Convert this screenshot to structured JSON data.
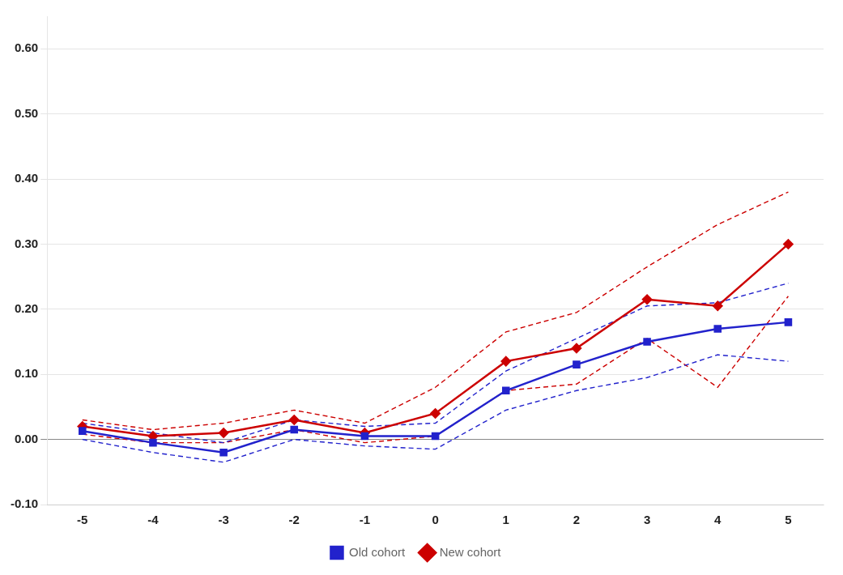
{
  "chart_data": {
    "type": "line",
    "x": [
      -5,
      -4,
      -3,
      -2,
      -1,
      0,
      1,
      2,
      3,
      4,
      5
    ],
    "series": [
      {
        "name": "Old cohort",
        "color": "#2222CC",
        "marker": "square",
        "values": [
          0.013,
          -0.005,
          -0.02,
          0.015,
          0.005,
          0.005,
          0.075,
          0.115,
          0.15,
          0.17,
          0.18
        ],
        "ci_upper": [
          0.025,
          0.01,
          -0.005,
          0.03,
          0.02,
          0.025,
          0.105,
          0.155,
          0.205,
          0.21,
          0.24
        ],
        "ci_lower": [
          0.0,
          -0.02,
          -0.035,
          0.0,
          -0.01,
          -0.015,
          0.045,
          0.075,
          0.095,
          0.13,
          0.12
        ]
      },
      {
        "name": "New cohort",
        "color": "#CC0000",
        "marker": "diamond",
        "values": [
          0.02,
          0.005,
          0.01,
          0.03,
          0.01,
          0.04,
          0.12,
          0.14,
          0.215,
          0.205,
          0.3
        ],
        "ci_upper": [
          0.03,
          0.015,
          0.025,
          0.045,
          0.025,
          0.08,
          0.165,
          0.195,
          0.265,
          0.33,
          0.38
        ],
        "ci_lower": [
          0.008,
          -0.005,
          -0.005,
          0.015,
          -0.005,
          0.005,
          0.075,
          0.085,
          0.155,
          0.08,
          0.22
        ]
      }
    ],
    "xlim": [
      -5.5,
      5.5
    ],
    "xticks": [
      -5,
      -4,
      -3,
      -2,
      -1,
      0,
      1,
      2,
      3,
      4,
      5
    ],
    "ylim": [
      -0.1,
      0.65
    ],
    "yticks": [
      {
        "value": -0.1,
        "label": "-0.10"
      },
      {
        "value": 0.0,
        "label": "0.00"
      },
      {
        "value": 0.1,
        "label": "0.10"
      },
      {
        "value": 0.2,
        "label": "0.20"
      },
      {
        "value": 0.3,
        "label": "0.30"
      },
      {
        "value": 0.4,
        "label": "0.40"
      },
      {
        "value": 0.5,
        "label": "0.50"
      },
      {
        "value": 0.6,
        "label": "0.60"
      }
    ],
    "grid": "y",
    "legend": "bottom"
  }
}
